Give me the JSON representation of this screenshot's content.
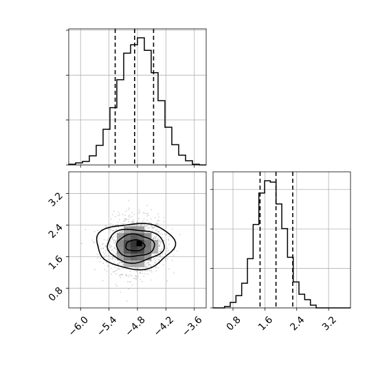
{
  "chart_data": {
    "type": "corner",
    "parameters": [
      {
        "range": [
          -6.25,
          -3.35
        ],
        "ticks": [
          -6.0,
          -5.4,
          -4.8,
          -4.2,
          -3.6
        ],
        "tick_labels": [
          "−6.0",
          "−5.4",
          "−4.8",
          "−4.2",
          "−3.6"
        ],
        "quantiles": [
          -5.27,
          -4.86,
          -4.46
        ]
      },
      {
        "range": [
          0.3,
          3.75
        ],
        "ticks": [
          0.8,
          1.6,
          2.4,
          3.2
        ],
        "tick_labels": [
          "0.8",
          "1.6",
          "2.4",
          "3.2"
        ],
        "quantiles": [
          1.48,
          1.88,
          2.3
        ]
      }
    ],
    "hist_1": {
      "bins": [
        -6.25,
        -6.105,
        -5.96,
        -5.815,
        -5.67,
        -5.525,
        -5.38,
        -5.235,
        -5.09,
        -4.945,
        -4.8,
        -4.655,
        -4.51,
        -4.365,
        -4.22,
        -4.075,
        -3.93,
        -3.785,
        -3.64,
        -3.495,
        -3.35
      ],
      "counts": [
        0.5,
        1.5,
        2.5,
        6.5,
        14,
        25.5,
        41,
        61,
        80,
        86,
        91,
        82,
        66,
        46,
        27,
        14.5,
        7,
        3,
        0.5,
        0
      ]
    },
    "hist_2": {
      "bins": [
        0.3,
        0.4438,
        0.5875,
        0.7313,
        0.875,
        1.0188,
        1.1625,
        1.3063,
        1.45,
        1.5938,
        1.7375,
        1.8813,
        2.025,
        2.1688,
        2.3125,
        2.4563,
        2.6,
        2.7438,
        2.8875,
        3.0313,
        3.175,
        3.3188,
        3.4625,
        3.6063,
        3.75
      ],
      "counts": [
        0,
        0,
        1,
        4,
        9,
        18,
        36,
        61,
        84,
        93,
        92,
        76,
        58,
        37,
        19,
        10,
        6,
        2,
        0,
        0,
        0,
        0,
        0,
        0
      ]
    },
    "joint": {
      "center": [
        -4.85,
        1.88
      ],
      "contour_levels_rx_ry": [
        [
          0.2,
          0.14
        ],
        [
          0.4,
          0.28
        ],
        [
          0.6,
          0.42
        ],
        [
          0.82,
          0.58
        ]
      ]
    }
  }
}
